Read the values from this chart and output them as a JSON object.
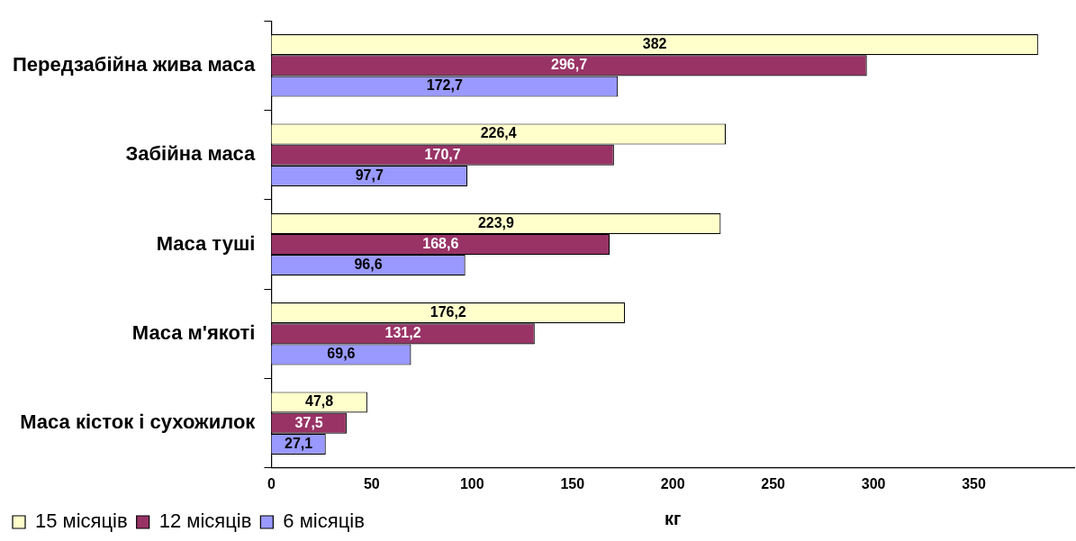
{
  "chart_data": {
    "type": "bar",
    "orientation": "horizontal",
    "xlabel": "кг",
    "categories": [
      "Передзабійна жива маса",
      "Забійна маса",
      "Маса туші",
      "Маса м'якоті",
      "Маса кісток і сухожилок"
    ],
    "series": [
      {
        "name": "15 місяців",
        "color": "#ffffcc",
        "values": [
          382,
          226.4,
          223.9,
          176.2,
          47.8
        ],
        "value_labels": [
          "382",
          "226,4",
          "223,9",
          "176,2",
          "47,8"
        ]
      },
      {
        "name": "12 місяців",
        "color": "#993366",
        "values": [
          296.7,
          170.7,
          168.6,
          131.2,
          37.5
        ],
        "value_labels": [
          "296,7",
          "170,7",
          "168,6",
          "131,2",
          "37,5"
        ]
      },
      {
        "name": "6 місяців",
        "color": "#9999ff",
        "values": [
          172.7,
          97.7,
          96.6,
          69.6,
          27.1
        ],
        "value_labels": [
          "172,7",
          "97,7",
          "96,6",
          "69,6",
          "27,1"
        ]
      }
    ],
    "xlim": [
      0,
      400
    ],
    "xticks": [
      0,
      50,
      100,
      150,
      200,
      250,
      300,
      350
    ],
    "grid": false,
    "legend": "bottom left"
  }
}
